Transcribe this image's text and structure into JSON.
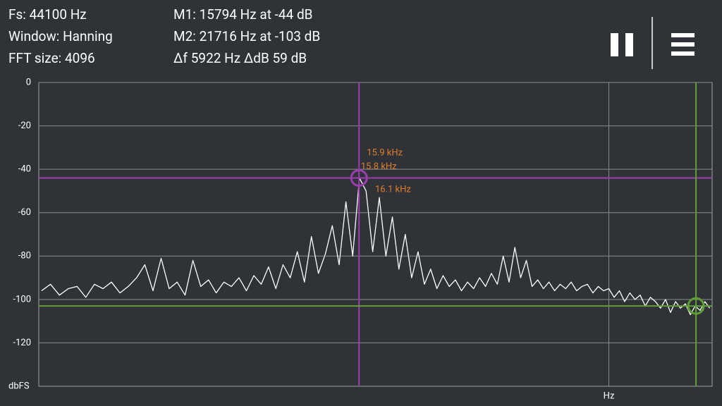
{
  "header": {
    "fs": "Fs: 44100 Hz",
    "window": "Window: Hanning",
    "fft": "FFT size: 4096",
    "m1": "M1: 15794 Hz at -44 dB",
    "m2": "M2: 21716 Hz at -103 dB",
    "delta": "Δf 5922 Hz ΔdB 59 dB"
  },
  "chart_data": {
    "type": "line",
    "xscale": "log",
    "y_label": "dbFS",
    "x_label": "Hz",
    "xlim": [
      11670,
      22050
    ],
    "xticks": [
      20000
    ],
    "ylim": [
      -140,
      0
    ],
    "yticks": [
      0,
      -20,
      -40,
      -60,
      -80,
      -100,
      -120
    ],
    "grid": true,
    "x": [
      11700,
      11800,
      11900,
      12000,
      12100,
      12200,
      12300,
      12400,
      12500,
      12600,
      12700,
      12800,
      12900,
      13000,
      13100,
      13200,
      13300,
      13400,
      13500,
      13600,
      13700,
      13800,
      13900,
      14000,
      14100,
      14200,
      14300,
      14400,
      14500,
      14600,
      14700,
      14800,
      14900,
      15000,
      15100,
      15200,
      15300,
      15400,
      15500,
      15600,
      15700,
      15800,
      15900,
      16000,
      16100,
      16200,
      16300,
      16400,
      16500,
      16600,
      16700,
      16800,
      16900,
      17000,
      17100,
      17200,
      17300,
      17400,
      17500,
      17600,
      17700,
      17800,
      17900,
      18000,
      18100,
      18200,
      18300,
      18400,
      18500,
      18600,
      18700,
      18800,
      18900,
      19000,
      19100,
      19200,
      19300,
      19400,
      19500,
      19600,
      19700,
      19800,
      19900,
      20000,
      20100,
      20200,
      20300,
      20400,
      20500,
      20600,
      20700,
      20800,
      20900,
      21000,
      21100,
      21200,
      21300,
      21400,
      21500,
      21600,
      21700,
      21800,
      21900,
      22000
    ],
    "series": [
      {
        "color": "#ffffff",
        "values": [
          -96,
          -93,
          -98,
          -95,
          -94,
          -99,
          -93,
          -95,
          -92,
          -97,
          -94,
          -90,
          -84,
          -96,
          -81,
          -95,
          -92,
          -98,
          -82,
          -94,
          -91,
          -97,
          -92,
          -94,
          -90,
          -96,
          -89,
          -93,
          -85,
          -95,
          -84,
          -90,
          -78,
          -92,
          -71,
          -88,
          -79,
          -66,
          -84,
          -55,
          -80,
          -44,
          -50,
          -78,
          -53,
          -80,
          -62,
          -86,
          -70,
          -90,
          -78,
          -93,
          -86,
          -95,
          -89,
          -94,
          -91,
          -96,
          -92,
          -95,
          -90,
          -94,
          -88,
          -93,
          -80,
          -92,
          -76,
          -90,
          -82,
          -94,
          -91,
          -95,
          -92,
          -96,
          -93,
          -95,
          -92,
          -96,
          -94,
          -93,
          -97,
          -94,
          -96,
          -95,
          -99,
          -96,
          -101,
          -97,
          -100,
          -98,
          -103,
          -99,
          -101,
          -104,
          -100,
          -106,
          -101,
          -104,
          -102,
          -107,
          -103,
          -105,
          -101,
          -104
        ]
      }
    ],
    "cursors": [
      {
        "x": 15794,
        "y": -44,
        "color": "#9c3fae"
      },
      {
        "x": 21716,
        "y": -103,
        "color": "#5e9e34"
      }
    ],
    "annotations": [
      {
        "text": "15.9  kHz",
        "x": 15900,
        "y": -50
      },
      {
        "text": "15.8  kHz",
        "x": 15800,
        "y": -44
      },
      {
        "text": "16.1  kHz",
        "x": 16100,
        "y": -53
      }
    ],
    "annotation_color": "#e07b2a"
  }
}
